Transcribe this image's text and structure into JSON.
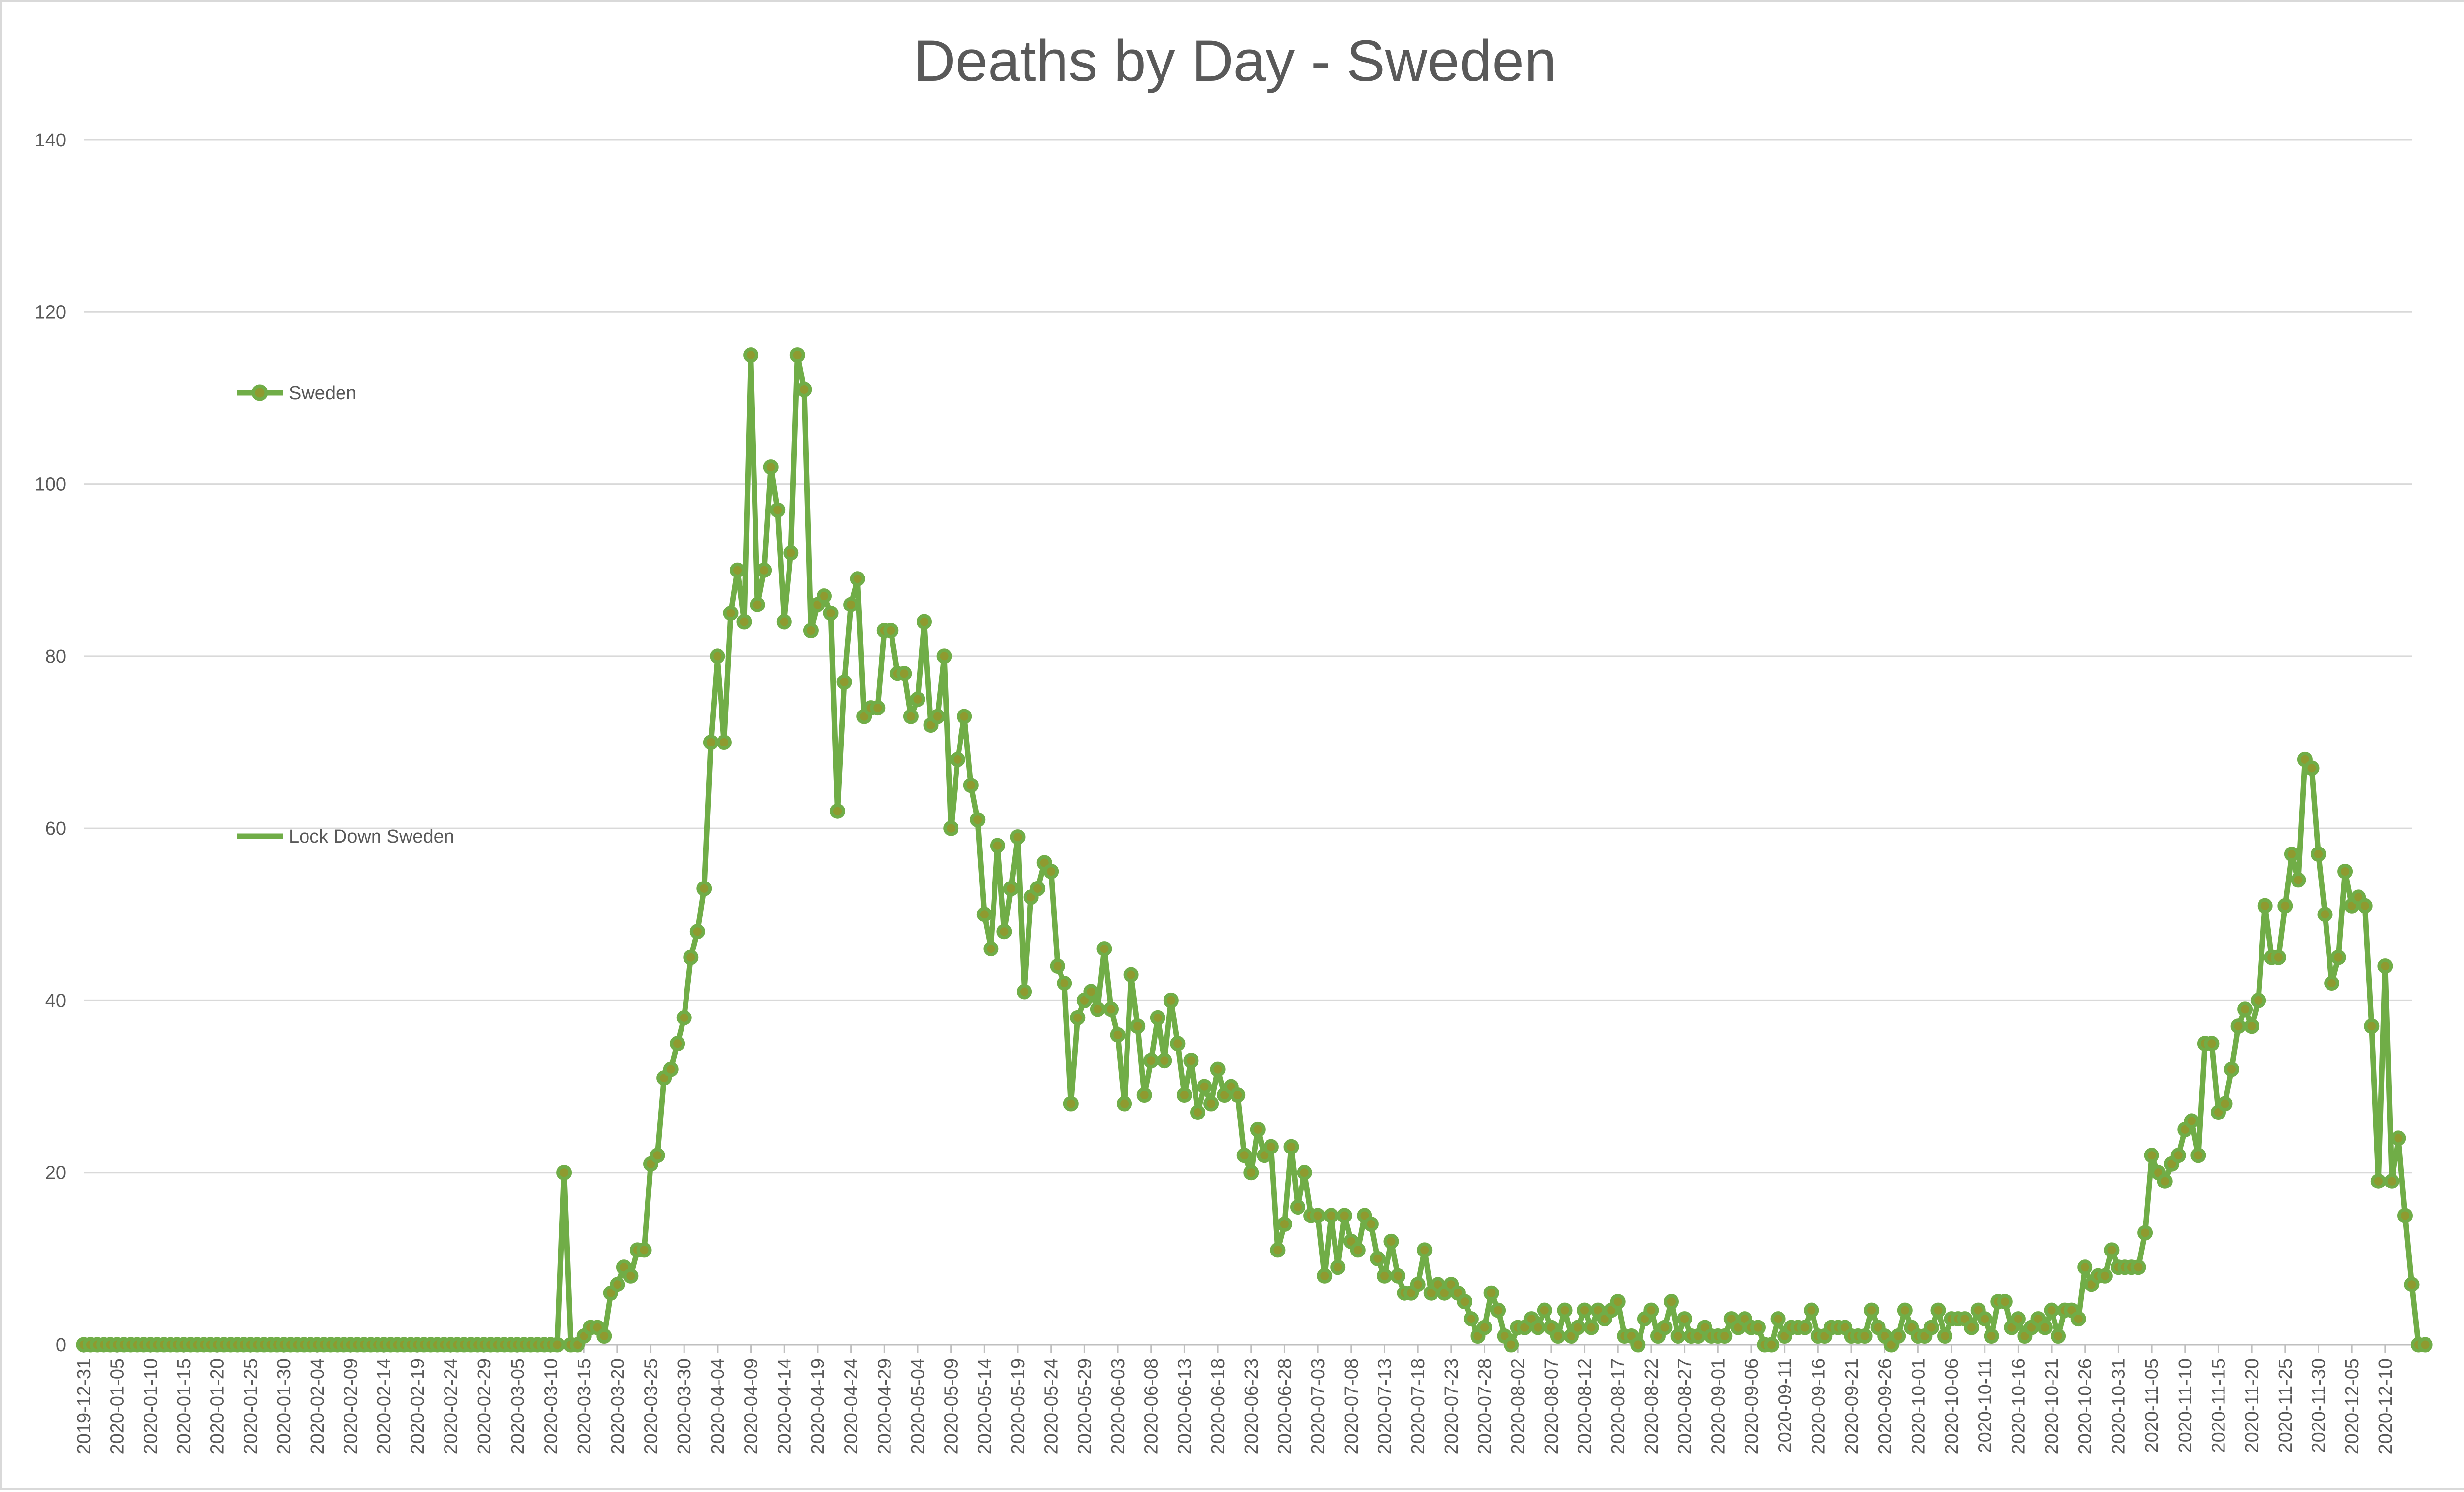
{
  "chart_data": {
    "type": "line",
    "title": "Deaths by Day - Sweden",
    "xlabel": "",
    "ylabel": "",
    "ylim": [
      0,
      140
    ],
    "yticks": [
      0,
      20,
      40,
      60,
      80,
      100,
      120,
      140
    ],
    "grid": true,
    "x_tick_labels": [
      "2019-12-31",
      "2020-01-05",
      "2020-01-10",
      "2020-01-15",
      "2020-01-20",
      "2020-01-25",
      "2020-01-30",
      "2020-02-04",
      "2020-02-09",
      "2020-02-14",
      "2020-02-19",
      "2020-02-24",
      "2020-02-29",
      "2020-03-05",
      "2020-03-10",
      "2020-03-15",
      "2020-03-20",
      "2020-03-25",
      "2020-03-30",
      "2020-04-04",
      "2020-04-09",
      "2020-04-14",
      "2020-04-19",
      "2020-04-24",
      "2020-04-29",
      "2020-05-04",
      "2020-05-09",
      "2020-05-14",
      "2020-05-19",
      "2020-05-24",
      "2020-05-29",
      "2020-06-03",
      "2020-06-08",
      "2020-06-13",
      "2020-06-18",
      "2020-06-23",
      "2020-06-28",
      "2020-07-03",
      "2020-07-08",
      "2020-07-13",
      "2020-07-18",
      "2020-07-23",
      "2020-07-28",
      "2020-08-02",
      "2020-08-07",
      "2020-08-12",
      "2020-08-17",
      "2020-08-22",
      "2020-08-27",
      "2020-09-01",
      "2020-09-06",
      "2020-09-11",
      "2020-09-16",
      "2020-09-21",
      "2020-09-26",
      "2020-10-01",
      "2020-10-06",
      "2020-10-11",
      "2020-10-16",
      "2020-10-21",
      "2020-10-26",
      "2020-10-31",
      "2020-11-05",
      "2020-11-10",
      "2020-11-15",
      "2020-11-20",
      "2020-11-25",
      "2020-11-30",
      "2020-12-05",
      "2020-12-10"
    ],
    "x_start": "2019-12-31",
    "x_end": "2020-12-14",
    "legend": [
      {
        "name": "Sweden",
        "marker": "circle",
        "color": "#70ad47"
      },
      {
        "name": "Lock Down Sweden",
        "marker": "none",
        "color": "#70ad47"
      }
    ],
    "legend_position": "left",
    "series": [
      {
        "name": "Sweden",
        "color": "#70ad47",
        "marker_fill": "#8f9a2f",
        "values": [
          0,
          0,
          0,
          0,
          0,
          0,
          0,
          0,
          0,
          0,
          0,
          0,
          0,
          0,
          0,
          0,
          0,
          0,
          0,
          0,
          0,
          0,
          0,
          0,
          0,
          0,
          0,
          0,
          0,
          0,
          0,
          0,
          0,
          0,
          0,
          0,
          0,
          0,
          0,
          0,
          0,
          0,
          0,
          0,
          0,
          0,
          0,
          0,
          0,
          0,
          0,
          0,
          0,
          0,
          0,
          0,
          0,
          0,
          0,
          0,
          0,
          0,
          0,
          0,
          0,
          0,
          0,
          0,
          0,
          0,
          0,
          0,
          20,
          0,
          0,
          1,
          2,
          2,
          1,
          6,
          7,
          9,
          8,
          11,
          11,
          21,
          22,
          31,
          32,
          35,
          38,
          45,
          48,
          53,
          70,
          80,
          70,
          85,
          90,
          84,
          115,
          86,
          90,
          102,
          97,
          84,
          92,
          115,
          111,
          83,
          86,
          87,
          85,
          62,
          77,
          86,
          89,
          73,
          74,
          74,
          83,
          83,
          78,
          78,
          73,
          75,
          84,
          72,
          73,
          80,
          60,
          68,
          73,
          65,
          61,
          50,
          46,
          58,
          48,
          53,
          59,
          41,
          52,
          53,
          56,
          55,
          44,
          42,
          28,
          38,
          40,
          41,
          39,
          46,
          39,
          36,
          28,
          43,
          37,
          29,
          33,
          38,
          33,
          40,
          35,
          29,
          33,
          27,
          30,
          28,
          32,
          29,
          30,
          29,
          22,
          20,
          25,
          22,
          23,
          11,
          14,
          23,
          16,
          20,
          15,
          15,
          8,
          15,
          9,
          15,
          12,
          11,
          15,
          14,
          10,
          8,
          12,
          8,
          6,
          6,
          7,
          11,
          6,
          7,
          6,
          7,
          6,
          5,
          3,
          1,
          2,
          6,
          4,
          1,
          0,
          2,
          2,
          3,
          2,
          4,
          2,
          1,
          4,
          1,
          2,
          4,
          2,
          4,
          3,
          4,
          5,
          1,
          1,
          0,
          3,
          4,
          1,
          2,
          5,
          1,
          3,
          1,
          1,
          2,
          1,
          1,
          1,
          3,
          2,
          3,
          2,
          2,
          0,
          0,
          3,
          1,
          2,
          2,
          2,
          4,
          1,
          1,
          2,
          2,
          2,
          1,
          1,
          1,
          4,
          2,
          1,
          0,
          1,
          4,
          2,
          1,
          1,
          2,
          4,
          1,
          3,
          3,
          3,
          2,
          4,
          3,
          1,
          5,
          5,
          2,
          3,
          1,
          2,
          3,
          2,
          4,
          1,
          4,
          4,
          3,
          9,
          7,
          8,
          8,
          11,
          9,
          9,
          9,
          9,
          13,
          22,
          20,
          19,
          21,
          22,
          25,
          26,
          22,
          35,
          35,
          27,
          28,
          32,
          37,
          39,
          37,
          40,
          51,
          45,
          45,
          51,
          57,
          54,
          68,
          67,
          57,
          50,
          42,
          45,
          55,
          51,
          52,
          51,
          37,
          19,
          44,
          19,
          24,
          15,
          7,
          0,
          0
        ]
      },
      {
        "name": "Lock Down Sweden",
        "color": "#70ad47",
        "values": []
      }
    ]
  }
}
